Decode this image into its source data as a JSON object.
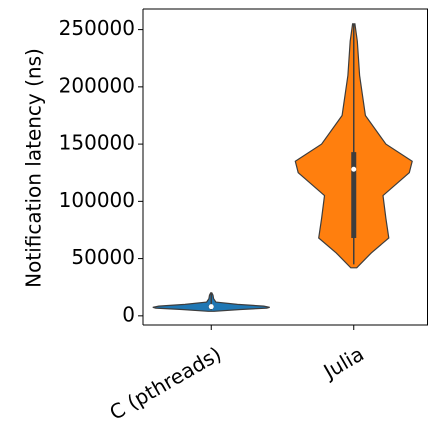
{
  "chart_data": {
    "type": "violin",
    "title": "",
    "xlabel": "",
    "ylabel": "Notification latency (ns)",
    "ylim": [
      -8000,
      268000
    ],
    "yticks": [
      0,
      50000,
      100000,
      150000,
      200000,
      250000
    ],
    "categories": [
      "C (pthreads)",
      "Julia"
    ],
    "series": [
      {
        "category": "C (pthreads)",
        "color": "#1f77b4",
        "min": 4000,
        "max": 20000,
        "q1": 6500,
        "median": 8000,
        "q3": 9500,
        "whisker_low": 5000,
        "whisker_high": 20000,
        "density": [
          {
            "y": 4000,
            "w": 0.05
          },
          {
            "y": 5500,
            "w": 0.5
          },
          {
            "y": 6800,
            "w": 0.95
          },
          {
            "y": 7500,
            "w": 1.0
          },
          {
            "y": 8500,
            "w": 0.9
          },
          {
            "y": 10000,
            "w": 0.45
          },
          {
            "y": 12000,
            "w": 0.08
          },
          {
            "y": 15000,
            "w": 0.04
          },
          {
            "y": 18000,
            "w": 0.03
          },
          {
            "y": 20000,
            "w": 0.01
          }
        ]
      },
      {
        "category": "Julia",
        "color": "#ff7f0e",
        "min": 42000,
        "max": 255000,
        "q1": 68000,
        "median": 128000,
        "q3": 143000,
        "whisker_low": 45000,
        "whisker_high": 255000,
        "density": [
          {
            "y": 42000,
            "w": 0.05
          },
          {
            "y": 55000,
            "w": 0.3
          },
          {
            "y": 68000,
            "w": 0.6
          },
          {
            "y": 85000,
            "w": 0.55
          },
          {
            "y": 105000,
            "w": 0.5
          },
          {
            "y": 125000,
            "w": 0.95
          },
          {
            "y": 135000,
            "w": 1.0
          },
          {
            "y": 150000,
            "w": 0.55
          },
          {
            "y": 175000,
            "w": 0.2
          },
          {
            "y": 210000,
            "w": 0.1
          },
          {
            "y": 240000,
            "w": 0.06
          },
          {
            "y": 255000,
            "w": 0.02
          }
        ]
      }
    ]
  }
}
